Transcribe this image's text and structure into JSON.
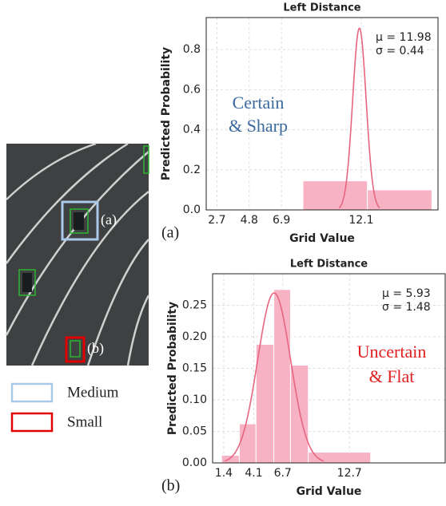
{
  "figure": {
    "image_labels": [
      "(a)",
      "(b)"
    ],
    "legend": [
      {
        "label": "Medium",
        "color": "#a9c9e9"
      },
      {
        "label": "Small",
        "color": "#e00000"
      }
    ]
  },
  "chart_data": [
    {
      "type": "histogram",
      "title": "Left Distance",
      "xlabel": "Grid Value",
      "ylabel": "Predicted Probability",
      "panel_label": "(a)",
      "annotations": [
        "Certain",
        "& Sharp"
      ],
      "annotation_color": "#3a6a9e",
      "stats": [
        "μ = 11.98",
        "σ = 0.44"
      ],
      "bins": [
        8.3,
        12.5,
        16.7
      ],
      "values": [
        0.145,
        0.1
      ],
      "color": "#f7b3c4",
      "curve": {
        "mu": 11.98,
        "sigma": 0.44,
        "color": "#e8657f"
      },
      "xlim": [
        2.0,
        17.1
      ],
      "ylim": [
        0,
        0.96
      ],
      "xticks": [
        2.7,
        4.8,
        6.9,
        12.1
      ],
      "yticks": [
        {
          "value": 0,
          "label": "0.0"
        },
        0.2,
        0.4,
        0.6,
        0.8
      ],
      "grid": true
    },
    {
      "type": "histogram",
      "title": "Left Distance",
      "xlabel": "Grid Value",
      "ylabel": "Predicted Probability",
      "panel_label": "(b)",
      "annotations": [
        "Uncertain",
        "& Flat"
      ],
      "annotation_color": "#e02020",
      "stats": [
        "μ = 5.93",
        "σ = 1.48"
      ],
      "bins": [
        1.2,
        2.8,
        4.3,
        5.9,
        7.4,
        9.0,
        14.6
      ],
      "values": [
        0.012,
        0.062,
        0.188,
        0.275,
        0.155,
        0.017
      ],
      "color": "#f7b3c4",
      "curve": {
        "mu": 5.93,
        "sigma": 1.48,
        "color": "#e8657f"
      },
      "xlim": [
        0.4,
        21.3
      ],
      "ylim": [
        0,
        0.3
      ],
      "xticks": [
        1.4,
        4.1,
        6.7,
        12.7
      ],
      "yticks": [
        {
          "value": 0,
          "label": "0.00"
        },
        0.05,
        {
          "value": 0.1,
          "label": "0.10"
        },
        0.15,
        {
          "value": 0.2,
          "label": "0.20"
        },
        0.25
      ],
      "grid": true
    }
  ]
}
